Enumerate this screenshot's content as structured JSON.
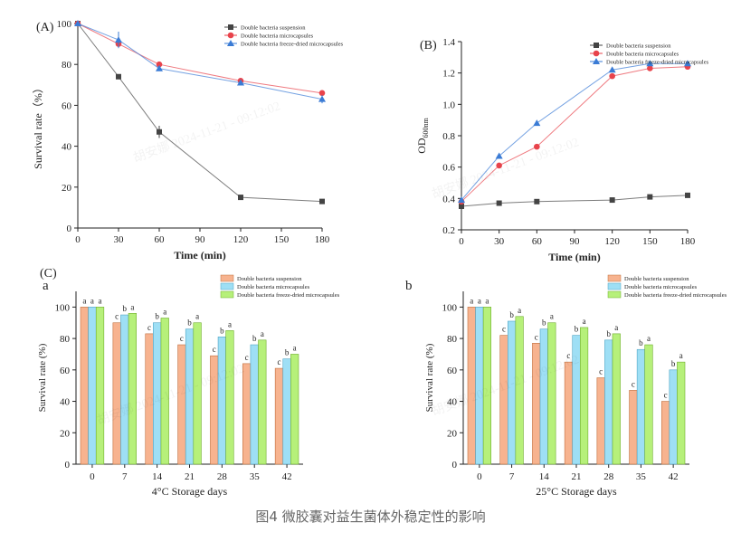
{
  "caption": "图4 微胶囊对益生菌体外稳定性的影响",
  "watermark": "胡安娜 2024-11-21 - 09:12:02",
  "colors": {
    "suspension": "#444444",
    "microcapsules": "#e8434b",
    "freeze_dried": "#3a7bd5",
    "bar_suspension": "#f7b38f",
    "bar_microcapsules": "#9edff5",
    "bar_freeze_dried": "#b6f07a"
  },
  "chart_data": [
    {
      "panel_label": "(A)",
      "type": "line",
      "xlabel": "Time (min)",
      "ylabel": "Survival rate（%）",
      "x": [
        0,
        30,
        60,
        120,
        180
      ],
      "xticks": [
        0,
        30,
        60,
        90,
        120,
        150,
        180
      ],
      "yticks": [
        0,
        20,
        40,
        60,
        80,
        100
      ],
      "xlim": [
        0,
        180
      ],
      "ylim": [
        0,
        100
      ],
      "legend_position": "top-right",
      "series": [
        {
          "name": "Double bacteria suspension",
          "values": [
            100,
            74,
            47,
            15,
            13
          ],
          "errors": [
            0,
            0,
            3,
            0,
            0
          ]
        },
        {
          "name": "Double bacteria microcapsules",
          "values": [
            100,
            90,
            80,
            72,
            66
          ],
          "errors": [
            0,
            2,
            1,
            1,
            1
          ]
        },
        {
          "name": "Double bacteria freeze-dried microcapsules",
          "values": [
            100,
            92,
            78,
            71,
            63
          ],
          "errors": [
            0,
            4,
            1,
            1,
            2
          ]
        }
      ]
    },
    {
      "panel_label": "(B)",
      "type": "line",
      "xlabel": "Time (min)",
      "ylabel": "OD",
      "ylabel_sub": "600nm",
      "x": [
        0,
        30,
        60,
        120,
        150,
        180
      ],
      "xticks": [
        0,
        30,
        60,
        90,
        120,
        150,
        180
      ],
      "yticks": [
        0.2,
        0.4,
        0.6,
        0.8,
        1.0,
        1.2,
        1.4
      ],
      "xlim": [
        0,
        180
      ],
      "ylim": [
        0.2,
        1.4
      ],
      "legend_position": "top-right",
      "series": [
        {
          "name": "Double bacteria suspension",
          "values": [
            0.35,
            0.37,
            0.38,
            0.39,
            0.41,
            0.42
          ]
        },
        {
          "name": "Double bacteria microcapsules",
          "values": [
            0.38,
            0.61,
            0.73,
            1.18,
            1.23,
            1.24
          ]
        },
        {
          "name": "Double bacteria freeze-dried microcapsules",
          "values": [
            0.39,
            0.67,
            0.88,
            1.22,
            1.26,
            1.26
          ]
        }
      ]
    },
    {
      "panel_label": "(C)",
      "sub_label": "a",
      "type": "bar",
      "xlabel": "4°C Storage days",
      "ylabel": "Survival rate (%)",
      "categories": [
        "0",
        "7",
        "14",
        "21",
        "28",
        "35",
        "42"
      ],
      "yticks": [
        0,
        20,
        40,
        60,
        80,
        100
      ],
      "ylim": [
        0,
        110
      ],
      "legend_position": "top-right",
      "series": [
        {
          "name": "Double bacteria suspension",
          "values": [
            100,
            90,
            83,
            76,
            69,
            64,
            61
          ],
          "letters": [
            "a",
            "c",
            "c",
            "c",
            "c",
            "c",
            "c"
          ]
        },
        {
          "name": "Double bacteria microcapsules",
          "values": [
            100,
            95,
            90,
            86,
            81,
            76,
            67
          ],
          "letters": [
            "a",
            "b",
            "b",
            "b",
            "b",
            "b",
            "b"
          ]
        },
        {
          "name": "Double bacteria freeze-dried microcapsules",
          "values": [
            100,
            96,
            93,
            90,
            85,
            79,
            70
          ],
          "letters": [
            "a",
            "a",
            "a",
            "a",
            "a",
            "a",
            "a"
          ]
        }
      ]
    },
    {
      "sub_label": "b",
      "type": "bar",
      "xlabel": "25°C Storage days",
      "ylabel": "Survival rate (%)",
      "categories": [
        "0",
        "7",
        "14",
        "21",
        "28",
        "35",
        "42"
      ],
      "yticks": [
        0,
        20,
        40,
        60,
        80,
        100
      ],
      "ylim": [
        0,
        110
      ],
      "legend_position": "top-right",
      "series": [
        {
          "name": "Double bacteria suspension",
          "values": [
            100,
            82,
            77,
            65,
            55,
            47,
            40
          ],
          "letters": [
            "a",
            "c",
            "c",
            "c",
            "c",
            "c",
            "c"
          ]
        },
        {
          "name": "Double bacteria microcapsules",
          "values": [
            100,
            91,
            86,
            82,
            79,
            73,
            60
          ],
          "letters": [
            "a",
            "b",
            "b",
            "b",
            "b",
            "b",
            "b"
          ]
        },
        {
          "name": "Double bacteria freeze-dried microcapsules",
          "values": [
            100,
            94,
            90,
            87,
            83,
            76,
            65
          ],
          "letters": [
            "a",
            "a",
            "a",
            "a",
            "a",
            "a",
            "a"
          ]
        }
      ]
    }
  ]
}
